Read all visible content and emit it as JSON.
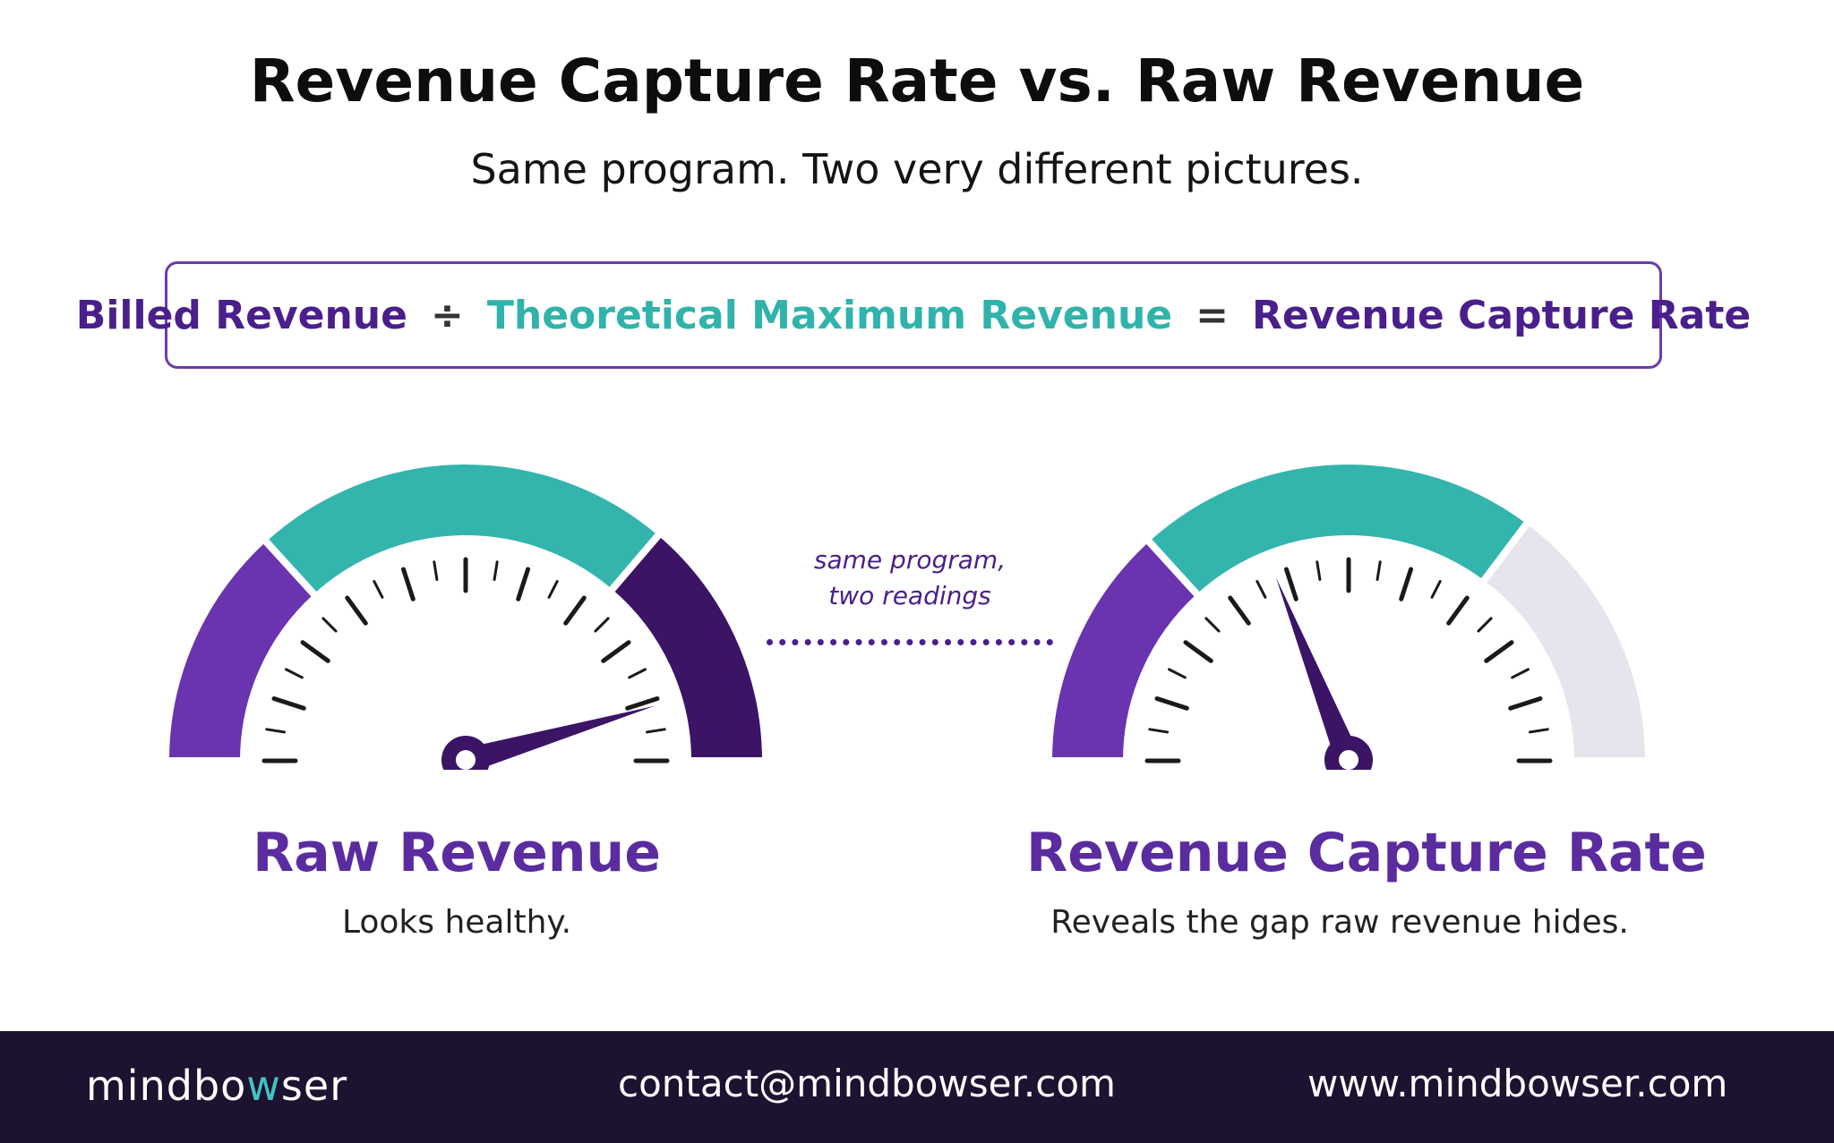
{
  "header": {
    "title": "Revenue Capture Rate vs. Raw Revenue",
    "subtitle": "Same program. Two very different pictures."
  },
  "formula": {
    "numerator": "Billed Revenue",
    "divide_symbol": "÷",
    "denominator": "Theoretical Maximum Revenue",
    "equals_symbol": "=",
    "result": "Revenue Capture Rate"
  },
  "connector": {
    "line1": "same program,",
    "line2": "two readings"
  },
  "gauges": {
    "left": {
      "title": "Raw Revenue",
      "subtitle": "Looks healthy.",
      "needle_fraction": 0.91,
      "segments": [
        {
          "from": 0.0,
          "to": 0.265,
          "color": "#6a33b0"
        },
        {
          "from": 0.265,
          "to": 0.725,
          "color": "#33b5ae"
        },
        {
          "from": 0.725,
          "to": 1.0,
          "color": "#3b1466"
        }
      ]
    },
    "right": {
      "title": "Revenue Capture Rate",
      "subtitle": "Reveals the gap raw revenue hides.",
      "needle_fraction": 0.38,
      "segments": [
        {
          "from": 0.0,
          "to": 0.265,
          "color": "#6a33b0"
        },
        {
          "from": 0.265,
          "to": 0.705,
          "color": "#33b5ae"
        },
        {
          "from": 0.705,
          "to": 1.0,
          "color": "#e6e4ec"
        }
      ]
    }
  },
  "colors": {
    "needle": "#3b1466",
    "ticks": "#1a1a1a",
    "footer_bg": "#1d1230",
    "logo_accent": "#3fc5c0"
  },
  "footer": {
    "logo_part1": "mindbo",
    "logo_part2": "w",
    "logo_part3": "ser",
    "contact": "contact@mindbowser.com",
    "website": "www.mindbowser.com"
  }
}
